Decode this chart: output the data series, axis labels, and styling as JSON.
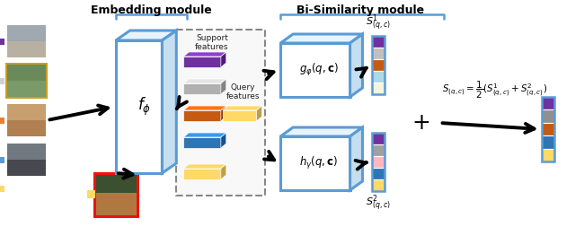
{
  "bg_color": "#ffffff",
  "embed_module_label": "Embedding module",
  "bisim_module_label": "Bi-Similarity module",
  "embed_func_label": "$f_{\\phi}$",
  "g_func_label": "$g_{\\varphi}(q, \\mathbf{c})$",
  "h_func_label": "$h_{\\gamma}(q, \\mathbf{c})$",
  "support_label": "Support\nfeatures",
  "query_label": "Query\nfeatures",
  "s1_label": "$S^{1}_{(q,c)}$",
  "s2_label": "$S^{2}_{(q,c)}$",
  "avg_formula": "$S_{(q,c)}=\\dfrac{1}{2}(S^{1}_{(q,c)}+S^{2}_{(q,c)})$",
  "blue_color": "#5b9bd5",
  "blue_light": "#e8f4fc",
  "blue_mid": "#c5dff0",
  "support_block_colors": [
    "#7030a0",
    "#b0b0b0",
    "#c55a11",
    "#2e75b6",
    "#ffd966"
  ],
  "query_block_color": "#ed7d31",
  "s1_colors": [
    "#7030a0",
    "#c0c0c0",
    "#c55a11",
    "#add8e6",
    "#f5f5dc"
  ],
  "s2_colors": [
    "#7030a0",
    "#a0a0a0",
    "#ffb6c1",
    "#2e75b6",
    "#ffd966"
  ],
  "out_colors": [
    "#7030a0",
    "#909090",
    "#c55a11",
    "#2e75b6",
    "#ffd966"
  ],
  "sq_colors_left": [
    "#7030a0",
    "#d0d0d0",
    "#ed7d31",
    "#5b9bd5",
    "#ffd966"
  ],
  "sq_color_query": "#ffd966",
  "img_border_colors": [
    "none",
    "#d4a017",
    "none",
    "none",
    "#ff0000"
  ],
  "arrow_lw": 2.8
}
